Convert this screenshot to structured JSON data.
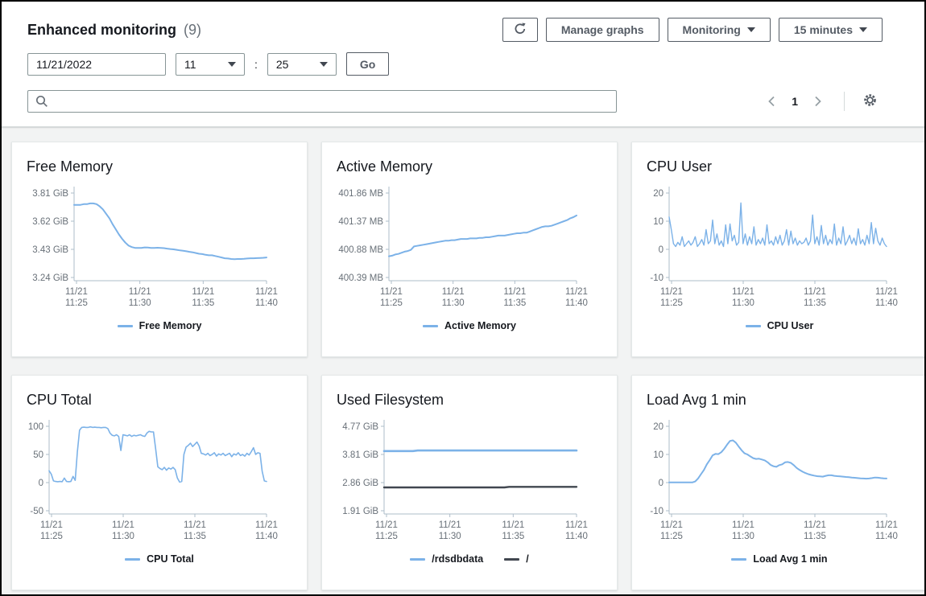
{
  "header": {
    "title": "Enhanced monitoring",
    "count": "(9)"
  },
  "toolbar": {
    "refresh_label": "refresh",
    "manage_graphs_label": "Manage graphs",
    "monitoring_label": "Monitoring",
    "interval_label": "15 minutes"
  },
  "filters": {
    "date_value": "11/21/2022",
    "hour_value": "11",
    "minute_value": "25",
    "time_separator": ":",
    "go_label": "Go",
    "search_placeholder": ""
  },
  "pagination": {
    "current_page": "1"
  },
  "colors": {
    "series_blue": "#7CB2E8",
    "series_dark": "#414750",
    "axis": "#AEBDCA",
    "tick_text": "#687078",
    "accent_border": "#545b64"
  },
  "chart_data": [
    {
      "type": "line",
      "title": "Free Memory",
      "y_ticks": [
        "3.81 GiB",
        "3.62 GiB",
        "3.43 GiB",
        "3.24 GiB"
      ],
      "y_max": 3.81,
      "y_min": 3.24,
      "x_ticks": [
        [
          "11/21",
          "11:25"
        ],
        [
          "11/21",
          "11:30"
        ],
        [
          "11/21",
          "11:35"
        ],
        [
          "11/21",
          "11:40"
        ]
      ],
      "series": [
        {
          "name": "Free Memory",
          "color": "#7CB2E8",
          "width": 2,
          "values": [
            3.73,
            3.73,
            3.73,
            3.735,
            3.735,
            3.74,
            3.74,
            3.735,
            3.72,
            3.7,
            3.67,
            3.64,
            3.6,
            3.565,
            3.53,
            3.5,
            3.475,
            3.455,
            3.445,
            3.44,
            3.44,
            3.44,
            3.443,
            3.442,
            3.44,
            3.44,
            3.441,
            3.44,
            3.438,
            3.435,
            3.432,
            3.43,
            3.427,
            3.423,
            3.42,
            3.417,
            3.413,
            3.41,
            3.405,
            3.4,
            3.398,
            3.393,
            3.39,
            3.39,
            3.385,
            3.38,
            3.375,
            3.37,
            3.368,
            3.365,
            3.364,
            3.365,
            3.365,
            3.366,
            3.368,
            3.37,
            3.37,
            3.371,
            3.372,
            3.373,
            3.375
          ]
        }
      ]
    },
    {
      "type": "line",
      "title": "Active Memory",
      "y_ticks": [
        "401.86 MB",
        "401.37 MB",
        "400.88 MB",
        "400.39 MB"
      ],
      "y_max": 401.86,
      "y_min": 400.39,
      "x_ticks": [
        [
          "11/21",
          "11:25"
        ],
        [
          "11/21",
          "11:30"
        ],
        [
          "11/21",
          "11:35"
        ],
        [
          "11/21",
          "11:40"
        ]
      ],
      "series": [
        {
          "name": "Active Memory",
          "color": "#7CB2E8",
          "width": 2,
          "values": [
            400.76,
            400.77,
            400.79,
            400.8,
            400.82,
            400.84,
            400.85,
            400.87,
            400.93,
            400.94,
            400.95,
            400.96,
            400.97,
            400.98,
            400.99,
            401.0,
            401.01,
            401.02,
            401.03,
            401.03,
            401.04,
            401.04,
            401.05,
            401.06,
            401.06,
            401.06,
            401.07,
            401.07,
            401.07,
            401.08,
            401.08,
            401.09,
            401.09,
            401.1,
            401.11,
            401.12,
            401.12,
            401.12,
            401.13,
            401.14,
            401.15,
            401.16,
            401.16,
            401.17,
            401.17,
            401.19,
            401.21,
            401.23,
            401.25,
            401.27,
            401.28,
            401.28,
            401.29,
            401.31,
            401.33,
            401.35,
            401.37,
            401.39,
            401.42,
            401.44,
            401.47
          ]
        }
      ]
    },
    {
      "type": "line",
      "title": "CPU User",
      "y_ticks": [
        "20",
        "10",
        "0",
        "-10"
      ],
      "y_max": 20,
      "y_min": -10,
      "x_ticks": [
        [
          "11/21",
          "11:25"
        ],
        [
          "11/21",
          "11:30"
        ],
        [
          "11/21",
          "11:35"
        ],
        [
          "11/21",
          "11:40"
        ]
      ],
      "series": [
        {
          "name": "CPU User",
          "color": "#7CB2E8",
          "width": 1.4,
          "values": [
            11.5,
            7,
            2,
            1,
            2.5,
            1.5,
            4.5,
            1,
            2,
            3,
            1.5,
            2.5,
            4.5,
            1,
            2,
            3.5,
            1.5,
            7,
            2,
            3,
            10.4,
            2,
            5.5,
            1.5,
            3,
            1,
            8.7,
            2,
            9,
            3,
            5,
            1.5,
            2.5,
            16.5,
            2,
            5.5,
            1.5,
            4.5,
            2,
            8,
            1.5,
            3.5,
            2,
            4,
            1.5,
            8.7,
            2,
            3,
            1.5,
            4.5,
            2,
            5,
            1.5,
            3,
            7,
            1.5,
            6.5,
            2,
            4,
            1.5,
            3,
            2,
            2.5,
            4,
            1.5,
            3,
            12.2,
            2,
            4.5,
            1.5,
            8.5,
            2,
            5,
            1.5,
            3.5,
            2,
            9,
            1.5,
            4,
            2,
            8,
            1.5,
            3,
            5,
            2,
            4,
            1.5,
            7.3,
            2,
            3.5,
            1.5,
            5,
            2,
            9.5,
            2,
            7.5,
            3,
            1.5,
            4,
            2,
            1
          ]
        }
      ]
    },
    {
      "type": "line",
      "title": "CPU Total",
      "y_ticks": [
        "100",
        "50",
        "0",
        "-50"
      ],
      "y_max": 100,
      "y_min": -50,
      "x_ticks": [
        [
          "11/21",
          "11:25"
        ],
        [
          "11/21",
          "11:30"
        ],
        [
          "11/21",
          "11:35"
        ],
        [
          "11/21",
          "11:40"
        ]
      ],
      "series": [
        {
          "name": "CPU Total",
          "color": "#7CB2E8",
          "width": 1.6,
          "values": [
            21,
            15,
            3,
            2,
            1.5,
            2,
            1.5,
            8,
            2,
            1.5,
            2,
            11,
            4,
            55,
            93,
            98,
            98.5,
            98,
            98,
            99,
            98,
            98.5,
            98,
            98,
            97.5,
            98,
            98,
            96,
            88,
            84,
            83,
            85,
            82,
            57,
            85,
            84,
            83,
            85,
            82,
            84,
            83,
            84,
            85,
            83,
            82,
            88,
            91,
            90,
            90,
            60,
            28,
            25,
            23,
            27,
            22,
            26,
            24,
            27,
            23,
            8,
            1,
            2,
            50,
            63,
            66,
            70,
            64,
            68,
            72,
            65,
            52,
            51,
            49,
            52,
            48,
            50,
            53,
            47,
            51,
            49,
            52,
            48,
            50,
            52,
            46,
            51,
            49,
            53,
            48,
            50,
            47,
            52,
            49,
            55,
            62,
            50,
            53,
            52,
            20,
            3,
            2
          ]
        }
      ]
    },
    {
      "type": "line",
      "title": "Used Filesystem",
      "y_ticks": [
        "4.77 GiB",
        "3.81 GiB",
        "2.86 GiB",
        "1.91 GiB"
      ],
      "y_max": 4.77,
      "y_min": 1.91,
      "x_ticks": [
        [
          "11/21",
          "11:25"
        ],
        [
          "11/21",
          "11:30"
        ],
        [
          "11/21",
          "11:35"
        ],
        [
          "11/21",
          "11:40"
        ]
      ],
      "series": [
        {
          "name": "/rdsdbdata",
          "color": "#7CB2E8",
          "width": 2.6,
          "values": [
            3.93,
            3.93,
            3.93,
            3.93,
            3.93,
            3.93,
            3.93,
            3.95,
            3.95,
            3.95,
            3.95,
            3.95,
            3.95,
            3.95,
            3.95,
            3.95,
            3.95,
            3.95,
            3.95,
            3.95,
            3.95,
            3.95,
            3.95,
            3.95,
            3.95,
            3.95,
            3.95,
            3.95,
            3.95,
            3.95,
            3.95,
            3.95,
            3.95,
            3.95,
            3.95,
            3.95,
            3.95,
            3.95,
            3.95,
            3.95,
            3.95
          ]
        },
        {
          "name": "/",
          "color": "#414750",
          "width": 2.4,
          "values": [
            2.7,
            2.7,
            2.7,
            2.7,
            2.7,
            2.7,
            2.7,
            2.7,
            2.7,
            2.7,
            2.7,
            2.7,
            2.7,
            2.7,
            2.7,
            2.7,
            2.7,
            2.7,
            2.7,
            2.7,
            2.7,
            2.7,
            2.7,
            2.7,
            2.7,
            2.7,
            2.72,
            2.72,
            2.72,
            2.72,
            2.72,
            2.72,
            2.72,
            2.72,
            2.72,
            2.72,
            2.72,
            2.72,
            2.72,
            2.72,
            2.72
          ]
        }
      ]
    },
    {
      "type": "line",
      "title": "Load Avg 1 min",
      "y_ticks": [
        "20",
        "10",
        "0",
        "-10"
      ],
      "y_max": 20,
      "y_min": -10,
      "x_ticks": [
        [
          "11/21",
          "11:25"
        ],
        [
          "11/21",
          "11:30"
        ],
        [
          "11/21",
          "11:35"
        ],
        [
          "11/21",
          "11:40"
        ]
      ],
      "series": [
        {
          "name": "Load Avg 1 min",
          "color": "#7CB2E8",
          "width": 2,
          "values": [
            0.05,
            0.05,
            0.06,
            0.05,
            0.05,
            0.06,
            0.05,
            0.05,
            0.06,
            0.4,
            1.5,
            3,
            4.5,
            6.5,
            8,
            9.7,
            10.2,
            10.1,
            10.8,
            12,
            13.5,
            14.8,
            15,
            14.2,
            12.8,
            11.5,
            10.4,
            10,
            9.3,
            8.7,
            8.4,
            8.5,
            8.2,
            7.9,
            7.2,
            6.3,
            5.8,
            5.6,
            6.2,
            6.5,
            7.2,
            7.3,
            7,
            6.2,
            5.2,
            4.5,
            3.9,
            3.4,
            3,
            2.7,
            2.5,
            2.3,
            2.2,
            2.1,
            2.4,
            2.6,
            2.6,
            2.4,
            2.3,
            2.2,
            2.1,
            2,
            1.9,
            1.8,
            1.7,
            1.6,
            1.5,
            1.45,
            1.4,
            1.45,
            1.6,
            1.8,
            1.75,
            1.6,
            1.5,
            1.45
          ]
        }
      ]
    }
  ]
}
